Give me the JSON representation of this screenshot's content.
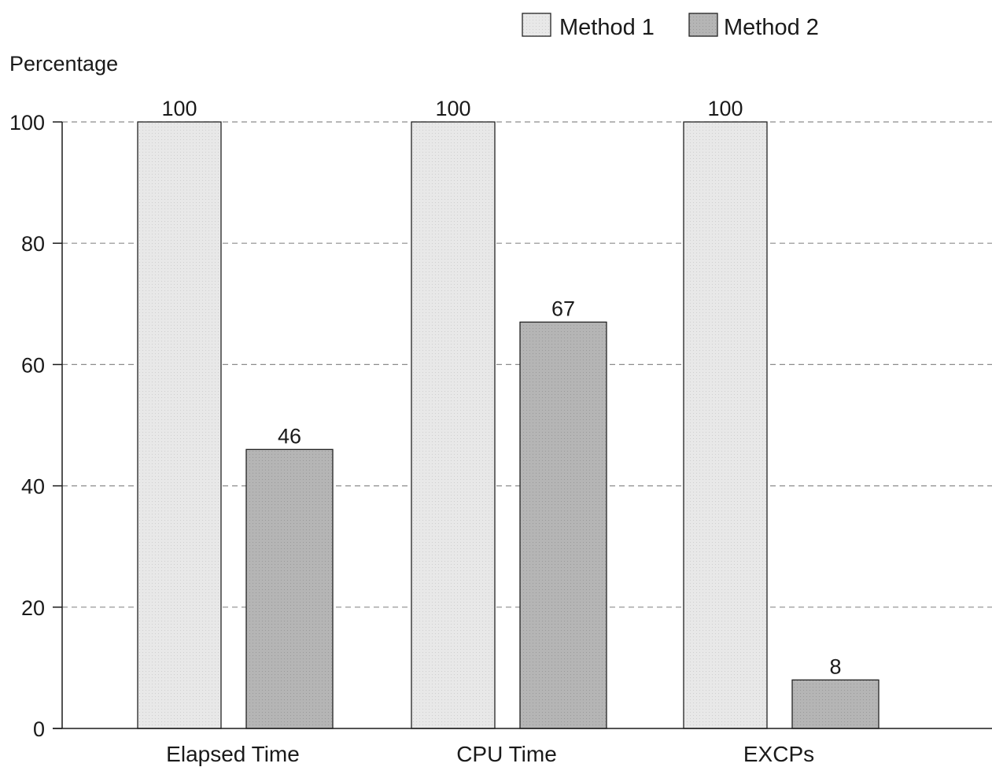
{
  "chart_data": {
    "type": "bar",
    "ylabel": "Percentage",
    "xlabel": "",
    "categories": [
      "Elapsed Time",
      "CPU Time",
      "EXCPs"
    ],
    "series": [
      {
        "name": "Method 1",
        "values": [
          100,
          100,
          100
        ],
        "color": "#e6e6e6"
      },
      {
        "name": "Method 2",
        "values": [
          46,
          67,
          8
        ],
        "color": "#b3b3b3"
      }
    ],
    "data_labels": [
      [
        "100",
        "100",
        "100"
      ],
      [
        "46",
        "67",
        "8"
      ]
    ],
    "ylim": [
      0,
      100
    ],
    "yticks": [
      0,
      20,
      40,
      60,
      80,
      100
    ],
    "grid": true,
    "legend_position": "top-right"
  }
}
